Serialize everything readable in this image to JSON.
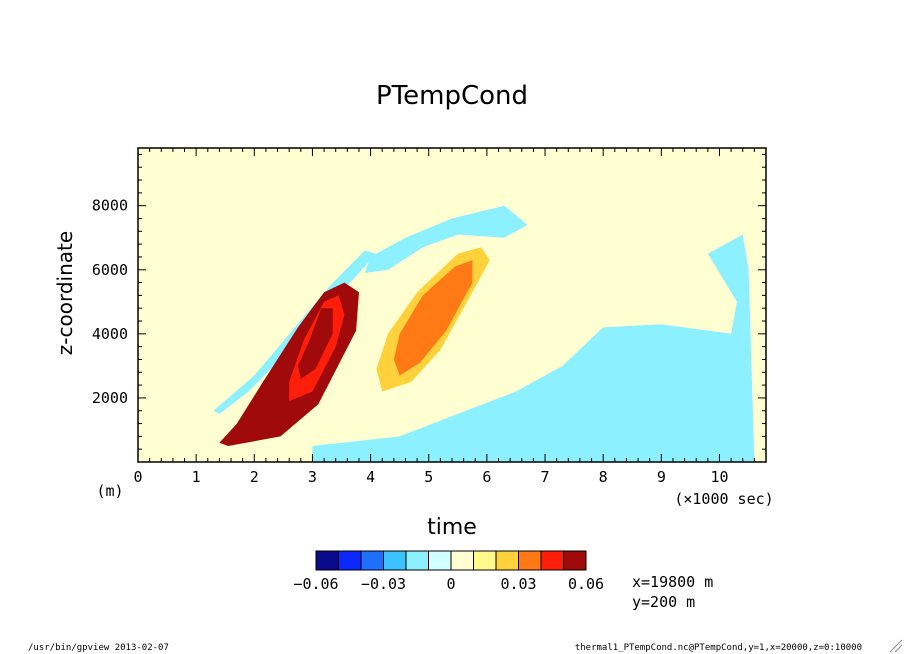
{
  "chart_data": {
    "type": "heatmap",
    "title": "PTempCond",
    "xlabel": "time",
    "x_unit": "(×1000 sec)",
    "ylabel": "z-coordinate",
    "y_unit": "(m)",
    "xlim": [
      0,
      10.8
    ],
    "ylim": [
      0,
      9800
    ],
    "x_ticks": [
      "0",
      "1",
      "2",
      "3",
      "4",
      "5",
      "6",
      "7",
      "8",
      "9",
      "10"
    ],
    "y_ticks": [
      "2000",
      "4000",
      "6000",
      "8000"
    ],
    "grid": false,
    "colorbar": {
      "colors": [
        "#0a0a8c",
        "#0a28ff",
        "#1e6eff",
        "#3cc3ff",
        "#8cf0ff",
        "#d2ffff",
        "#ffffd2",
        "#fffa8c",
        "#ffd23c",
        "#ff7a14",
        "#ff1e0a",
        "#a00a0a"
      ],
      "labels": [
        "-0.06",
        "-0.03",
        "0",
        "0.03",
        "0.06"
      ]
    },
    "background_color": "#ffffd2",
    "features": [
      {
        "name": "warm plume 1",
        "level": "0.06",
        "outline": [
          [
            1.55,
            500
          ],
          [
            2.45,
            800
          ],
          [
            3.1,
            1800
          ],
          [
            3.75,
            4100
          ],
          [
            3.8,
            5300
          ],
          [
            3.55,
            5600
          ],
          [
            3.2,
            5300
          ],
          [
            2.75,
            4200
          ],
          [
            2.15,
            2500
          ],
          [
            1.7,
            1200
          ],
          [
            1.4,
            600
          ]
        ]
      },
      {
        "name": "warm plume 1 core",
        "level": "0.05",
        "outline": [
          [
            2.3,
            1300
          ],
          [
            2.75,
            1700
          ],
          [
            3.3,
            3200
          ],
          [
            3.65,
            4700
          ],
          [
            3.55,
            5400
          ],
          [
            3.25,
            5300
          ],
          [
            2.8,
            4000
          ],
          [
            2.3,
            2200
          ],
          [
            2.2,
            1500
          ]
        ]
      },
      {
        "name": "warm plume 1 center",
        "level": "0.04",
        "outline": [
          [
            2.6,
            1900
          ],
          [
            3.0,
            2200
          ],
          [
            3.4,
            3600
          ],
          [
            3.55,
            4600
          ],
          [
            3.45,
            5200
          ],
          [
            3.2,
            5000
          ],
          [
            2.85,
            3800
          ],
          [
            2.6,
            2500
          ]
        ]
      },
      {
        "name": "warm plume 1 peak",
        "level": "0.06",
        "outline": [
          [
            2.8,
            2600
          ],
          [
            3.05,
            2900
          ],
          [
            3.35,
            4000
          ],
          [
            3.35,
            4800
          ],
          [
            3.15,
            4800
          ],
          [
            2.95,
            3800
          ],
          [
            2.75,
            3000
          ]
        ]
      },
      {
        "name": "warm plume 2",
        "level": "0.02",
        "outline": [
          [
            4.2,
            2200
          ],
          [
            4.7,
            2500
          ],
          [
            5.2,
            3500
          ],
          [
            5.75,
            5300
          ],
          [
            6.05,
            6300
          ],
          [
            5.9,
            6700
          ],
          [
            5.5,
            6500
          ],
          [
            4.8,
            5300
          ],
          [
            4.3,
            4000
          ],
          [
            4.1,
            2900
          ]
        ]
      },
      {
        "name": "warm plume 2 core",
        "level": "0.03",
        "outline": [
          [
            4.5,
            2700
          ],
          [
            4.85,
            3100
          ],
          [
            5.3,
            4100
          ],
          [
            5.75,
            5600
          ],
          [
            5.75,
            6300
          ],
          [
            5.45,
            6100
          ],
          [
            4.9,
            5200
          ],
          [
            4.5,
            4000
          ],
          [
            4.4,
            3200
          ]
        ]
      },
      {
        "name": "cool region lower right",
        "level": "-0.01",
        "outline": [
          [
            3.0,
            500
          ],
          [
            4.5,
            800
          ],
          [
            5.5,
            1500
          ],
          [
            6.5,
            2200
          ],
          [
            7.3,
            3000
          ],
          [
            8.0,
            4200
          ],
          [
            9.0,
            4300
          ],
          [
            10.2,
            4000
          ],
          [
            10.3,
            5000
          ],
          [
            9.8,
            6500
          ],
          [
            10.4,
            7100
          ],
          [
            10.5,
            6000
          ],
          [
            10.6,
            0
          ],
          [
            3.0,
            0
          ]
        ]
      },
      {
        "name": "cool arc upper",
        "level": "-0.01",
        "outline": [
          [
            4.0,
            6400
          ],
          [
            4.6,
            7000
          ],
          [
            5.4,
            7600
          ],
          [
            6.3,
            8000
          ],
          [
            6.7,
            7400
          ],
          [
            6.3,
            7000
          ],
          [
            5.5,
            7100
          ],
          [
            4.9,
            6700
          ],
          [
            4.3,
            6000
          ],
          [
            3.9,
            5900
          ]
        ]
      },
      {
        "name": "cool arc left",
        "level": "-0.01",
        "outline": [
          [
            1.3,
            1600
          ],
          [
            2.0,
            2700
          ],
          [
            2.7,
            4200
          ],
          [
            3.3,
            5500
          ],
          [
            3.9,
            6600
          ],
          [
            4.1,
            6500
          ],
          [
            3.7,
            5700
          ],
          [
            3.1,
            4700
          ],
          [
            2.5,
            3300
          ],
          [
            1.9,
            2200
          ],
          [
            1.4,
            1500
          ]
        ]
      }
    ]
  },
  "annotations": {
    "position_x": "x=19800  m",
    "position_y": "y=200  m",
    "footer_left": "/usr/bin/gpview  2013-02-07",
    "footer_right": "thermal1_PTempCond.nc@PTempCond,y=1,x=20000,z=0:10000"
  }
}
